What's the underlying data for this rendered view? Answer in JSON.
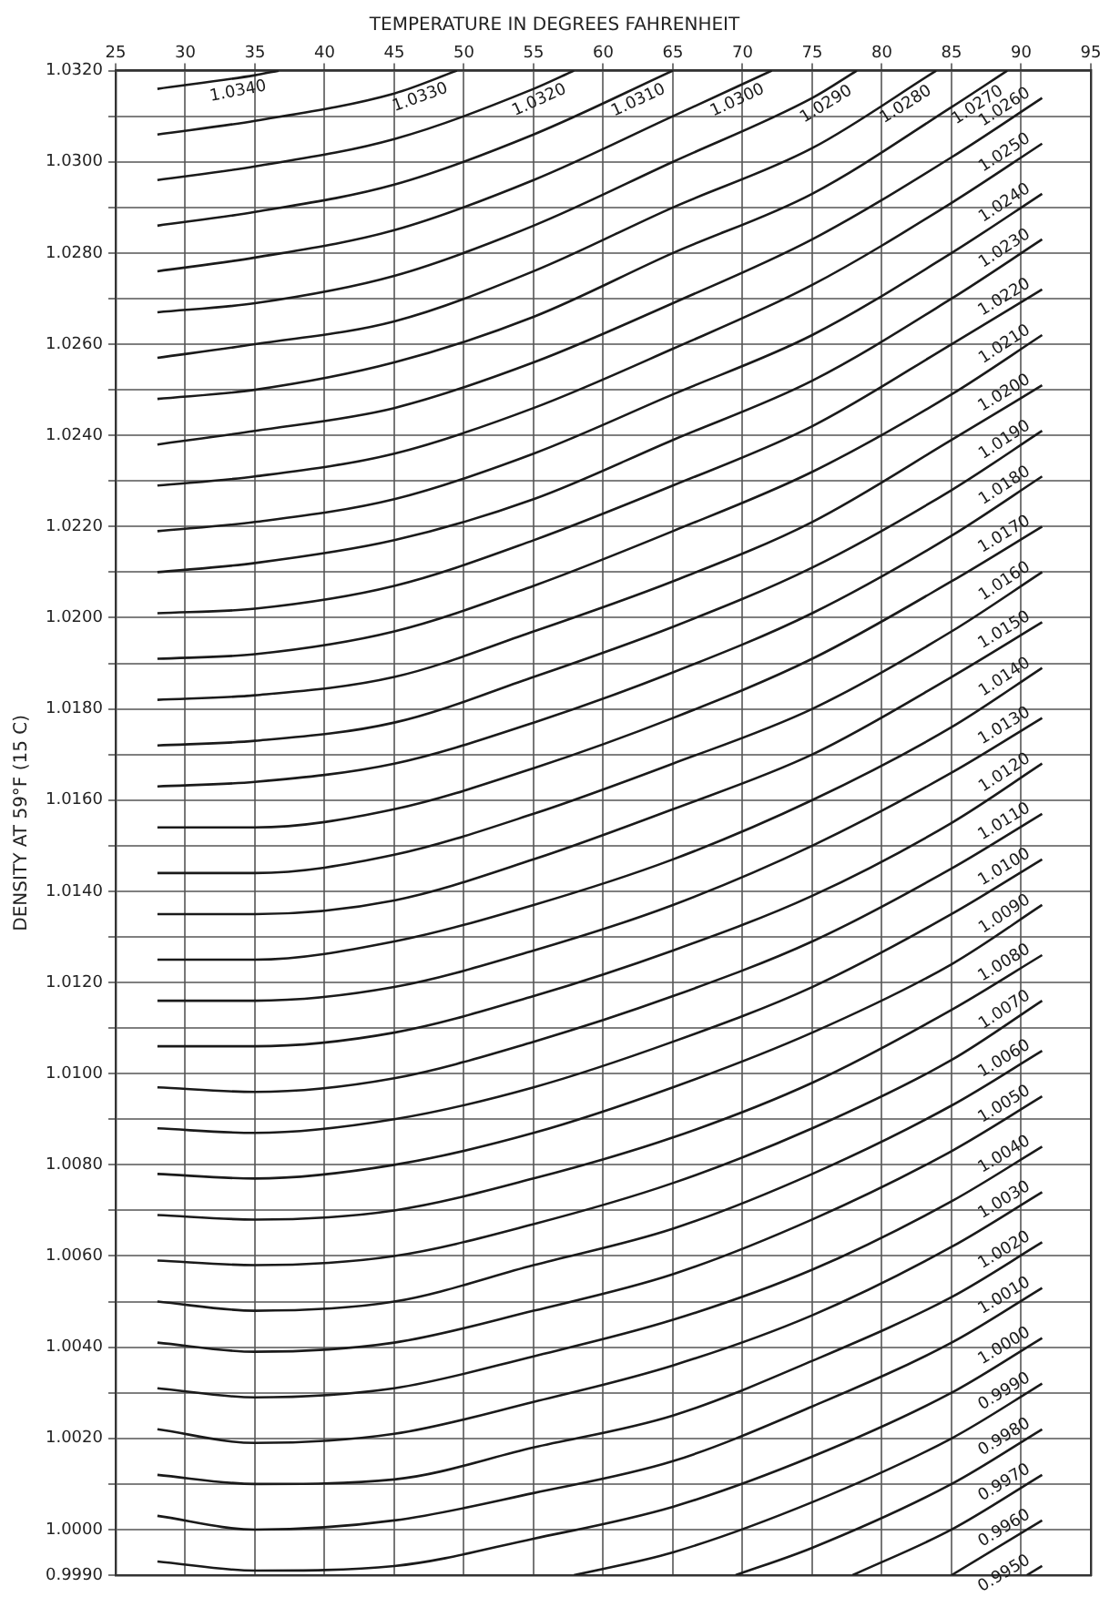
{
  "chart_data": {
    "type": "line",
    "title": "TEMPERATURE IN DEGREES FAHRENHEIT",
    "ylabel": "DENSITY AT 59°F (15 C)",
    "color": "#1a1a1a",
    "marker": "none",
    "grid": true,
    "legend": false,
    "xlim": [
      25,
      95
    ],
    "xticks": [
      25,
      30,
      35,
      40,
      45,
      50,
      55,
      60,
      65,
      70,
      75,
      80,
      85,
      90,
      95
    ],
    "ylim": [
      0.999,
      1.032
    ],
    "yticks": [
      {
        "value": 1.032,
        "label": "1.0320"
      },
      {
        "value": 1.031,
        "label": null
      },
      {
        "value": 1.03,
        "label": "1.0300"
      },
      {
        "value": 1.029,
        "label": null
      },
      {
        "value": 1.028,
        "label": "1.0280"
      },
      {
        "value": 1.027,
        "label": null
      },
      {
        "value": 1.026,
        "label": "1.0260"
      },
      {
        "value": 1.025,
        "label": null
      },
      {
        "value": 1.024,
        "label": "1.0240"
      },
      {
        "value": 1.023,
        "label": null
      },
      {
        "value": 1.022,
        "label": "1.0220"
      },
      {
        "value": 1.021,
        "label": null
      },
      {
        "value": 1.02,
        "label": "1.0200"
      },
      {
        "value": 1.019,
        "label": null
      },
      {
        "value": 1.018,
        "label": "1.0180"
      },
      {
        "value": 1.017,
        "label": null
      },
      {
        "value": 1.016,
        "label": "1.0160"
      },
      {
        "value": 1.015,
        "label": null
      },
      {
        "value": 1.014,
        "label": "1.0140"
      },
      {
        "value": 1.013,
        "label": null
      },
      {
        "value": 1.012,
        "label": "1.0120"
      },
      {
        "value": 1.011,
        "label": null
      },
      {
        "value": 1.01,
        "label": "1.0100"
      },
      {
        "value": 1.009,
        "label": null
      },
      {
        "value": 1.008,
        "label": "1.0080"
      },
      {
        "value": 1.007,
        "label": null
      },
      {
        "value": 1.006,
        "label": "1.0060"
      },
      {
        "value": 1.005,
        "label": null
      },
      {
        "value": 1.004,
        "label": "1.0040"
      },
      {
        "value": 1.003,
        "label": null
      },
      {
        "value": 1.002,
        "label": "1.0020"
      },
      {
        "value": 1.001,
        "label": null
      },
      {
        "value": 1.0,
        "label": "1.0000"
      },
      {
        "value": 0.999,
        "label": "0.9990"
      }
    ],
    "x": [
      28,
      35,
      45,
      55,
      65,
      75,
      85,
      91.5
    ],
    "series": [
      {
        "name": "1.0340",
        "x": [
          28,
          35,
          36.7
        ],
        "values": [
          1.0316,
          1.0319,
          1.032
        ]
      },
      {
        "name": "1.0330",
        "x": [
          28,
          35,
          45,
          49.5
        ],
        "values": [
          1.0306,
          1.0309,
          1.0315,
          1.032
        ]
      },
      {
        "name": "1.0320",
        "x": [
          28,
          35,
          45,
          55,
          57.9
        ],
        "values": [
          1.0296,
          1.0299,
          1.0305,
          1.0316,
          1.032
        ]
      },
      {
        "name": "1.0310",
        "x": [
          28,
          35,
          45,
          55,
          65
        ],
        "values": [
          1.0286,
          1.0289,
          1.0295,
          1.0306,
          1.032
        ]
      },
      {
        "name": "1.0300",
        "x": [
          28,
          35,
          45,
          55,
          65,
          72.1
        ],
        "values": [
          1.0276,
          1.0279,
          1.0285,
          1.0296,
          1.031,
          1.032
        ]
      },
      {
        "name": "1.0290",
        "x": [
          28,
          35,
          45,
          55,
          65,
          75,
          78.2
        ],
        "values": [
          1.0267,
          1.0269,
          1.0275,
          1.0286,
          1.03,
          1.0314,
          1.032
        ]
      },
      {
        "name": "1.0280",
        "x": [
          28,
          35,
          45,
          55,
          65,
          75,
          83.9
        ],
        "values": [
          1.0257,
          1.026,
          1.0265,
          1.0276,
          1.029,
          1.0303,
          1.032
        ]
      },
      {
        "name": "1.0270",
        "x": [
          28,
          35,
          45,
          55,
          65,
          75,
          85,
          89
        ],
        "values": [
          1.0248,
          1.025,
          1.0256,
          1.0266,
          1.028,
          1.0293,
          1.0312,
          1.032
        ]
      },
      {
        "name": "1.0260",
        "values": [
          1.0238,
          1.0241,
          1.0246,
          1.0256,
          1.0269,
          1.0283,
          1.0301,
          1.0314
        ]
      },
      {
        "name": "1.0250",
        "values": [
          1.0229,
          1.0231,
          1.0236,
          1.0246,
          1.0259,
          1.0273,
          1.0291,
          1.0304
        ]
      },
      {
        "name": "1.0240",
        "values": [
          1.0219,
          1.0221,
          1.0226,
          1.0236,
          1.0249,
          1.0262,
          1.028,
          1.0293
        ]
      },
      {
        "name": "1.0230",
        "values": [
          1.021,
          1.0212,
          1.0217,
          1.0226,
          1.0239,
          1.0252,
          1.027,
          1.0283
        ]
      },
      {
        "name": "1.0220",
        "values": [
          1.0201,
          1.0202,
          1.0207,
          1.0217,
          1.0229,
          1.0242,
          1.026,
          1.0272
        ]
      },
      {
        "name": "1.0210",
        "values": [
          1.0191,
          1.0192,
          1.0197,
          1.0207,
          1.0219,
          1.0232,
          1.0249,
          1.0262
        ]
      },
      {
        "name": "1.0200",
        "values": [
          1.0182,
          1.0183,
          1.0187,
          1.0197,
          1.0208,
          1.0221,
          1.0239,
          1.0251
        ]
      },
      {
        "name": "1.0190",
        "values": [
          1.0172,
          1.0173,
          1.0177,
          1.0187,
          1.0198,
          1.0211,
          1.0228,
          1.0241
        ]
      },
      {
        "name": "1.0180",
        "values": [
          1.0163,
          1.0164,
          1.0168,
          1.0177,
          1.0188,
          1.0201,
          1.0218,
          1.0231
        ]
      },
      {
        "name": "1.0170",
        "values": [
          1.0154,
          1.0154,
          1.0158,
          1.0167,
          1.0178,
          1.0191,
          1.0208,
          1.022
        ]
      },
      {
        "name": "1.0160",
        "values": [
          1.0144,
          1.0144,
          1.0148,
          1.0157,
          1.0168,
          1.018,
          1.0197,
          1.021
        ]
      },
      {
        "name": "1.0150",
        "values": [
          1.0135,
          1.0135,
          1.0138,
          1.0147,
          1.0158,
          1.017,
          1.0187,
          1.0199
        ]
      },
      {
        "name": "1.0140",
        "values": [
          1.0125,
          1.0125,
          1.0129,
          1.0137,
          1.0147,
          1.016,
          1.0176,
          1.0189
        ]
      },
      {
        "name": "1.0130",
        "values": [
          1.0116,
          1.0116,
          1.0119,
          1.0127,
          1.0137,
          1.015,
          1.0166,
          1.0178
        ]
      },
      {
        "name": "1.0120",
        "values": [
          1.0106,
          1.0106,
          1.0109,
          1.0117,
          1.0127,
          1.0139,
          1.0155,
          1.0168
        ]
      },
      {
        "name": "1.0110",
        "values": [
          1.0097,
          1.0096,
          1.0099,
          1.0107,
          1.0117,
          1.0129,
          1.0145,
          1.0157
        ]
      },
      {
        "name": "1.0100",
        "values": [
          1.0088,
          1.0087,
          1.009,
          1.0097,
          1.0107,
          1.0119,
          1.0135,
          1.0147
        ]
      },
      {
        "name": "1.0090",
        "values": [
          1.0078,
          1.0077,
          1.008,
          1.0087,
          1.0097,
          1.0109,
          1.0124,
          1.0137
        ]
      },
      {
        "name": "1.0080",
        "values": [
          1.0069,
          1.0068,
          1.007,
          1.0077,
          1.0086,
          1.0098,
          1.0114,
          1.0126
        ]
      },
      {
        "name": "1.0070",
        "values": [
          1.0059,
          1.0058,
          1.006,
          1.0067,
          1.0076,
          1.0088,
          1.0103,
          1.0116
        ]
      },
      {
        "name": "1.0060",
        "values": [
          1.005,
          1.0048,
          1.005,
          1.0058,
          1.0066,
          1.0078,
          1.0093,
          1.0105
        ]
      },
      {
        "name": "1.0050",
        "values": [
          1.0041,
          1.0039,
          1.0041,
          1.0048,
          1.0056,
          1.0068,
          1.0083,
          1.0095
        ]
      },
      {
        "name": "1.0040",
        "values": [
          1.0031,
          1.0029,
          1.0031,
          1.0038,
          1.0046,
          1.0057,
          1.0072,
          1.0084
        ]
      },
      {
        "name": "1.0030",
        "values": [
          1.0022,
          1.0019,
          1.0021,
          1.0028,
          1.0036,
          1.0047,
          1.0062,
          1.0074
        ]
      },
      {
        "name": "1.0020",
        "values": [
          1.0012,
          1.001,
          1.0011,
          1.0018,
          1.0025,
          1.0037,
          1.0051,
          1.0063
        ]
      },
      {
        "name": "1.0010",
        "values": [
          1.0003,
          1.0,
          1.0002,
          1.0008,
          1.0015,
          1.0027,
          1.0041,
          1.0053
        ]
      },
      {
        "name": "1.0000",
        "values": [
          0.9993,
          0.9991,
          0.9992,
          0.9998,
          1.0005,
          1.0016,
          1.003,
          1.0042
        ]
      },
      {
        "name": "0.9990",
        "x": [
          57.9,
          65,
          75,
          85,
          91.5
        ],
        "values": [
          0.999,
          0.9995,
          1.0006,
          1.002,
          1.0032
        ]
      },
      {
        "name": "0.9980",
        "x": [
          69.5,
          75,
          85,
          91.5
        ],
        "values": [
          0.999,
          0.9996,
          1.001,
          1.0022
        ]
      },
      {
        "name": "0.9970",
        "x": [
          77.9,
          85,
          91.5
        ],
        "values": [
          0.999,
          1.0,
          1.0012
        ]
      },
      {
        "name": "0.9960",
        "x": [
          85,
          91.5
        ],
        "values": [
          0.999,
          1.0002
        ]
      },
      {
        "name": "0.9950",
        "x": [
          90.4,
          91.5
        ],
        "values": [
          0.999,
          0.9992
        ]
      }
    ]
  }
}
